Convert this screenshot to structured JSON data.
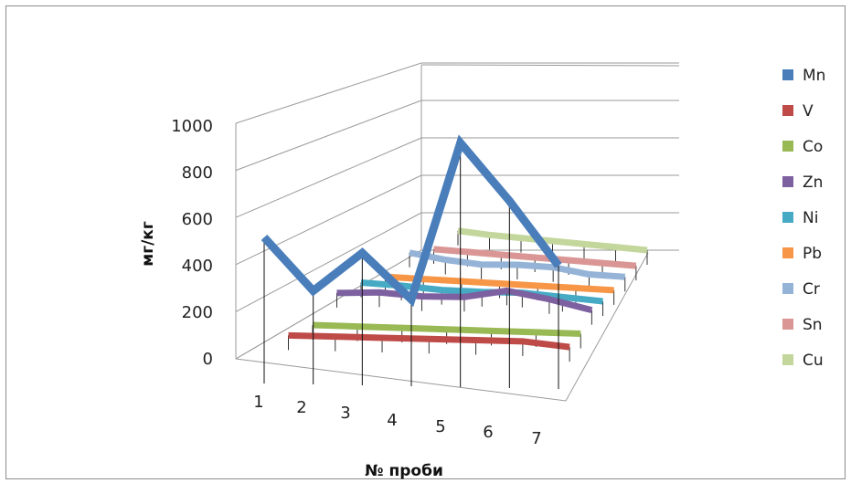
{
  "chart_data": {
    "type": "line",
    "subtype": "3d-line",
    "xlabel": "№ проби",
    "ylabel": "мг/кг",
    "categories": [
      "1",
      "2",
      "3",
      "4",
      "5",
      "6",
      "7"
    ],
    "y_ticks": [
      "0",
      "200",
      "400",
      "600",
      "800",
      "1000"
    ],
    "ylim": [
      0,
      1000
    ],
    "grid": true,
    "legend_position": "right",
    "series": [
      {
        "name": "Mn",
        "color": "#4a7ebb",
        "values": [
          520,
          290,
          460,
          260,
          950,
          700,
          420
        ]
      },
      {
        "name": "V",
        "color": "#be4b48",
        "values": [
          25,
          25,
          25,
          25,
          25,
          25,
          5
        ]
      },
      {
        "name": "Co",
        "color": "#98b954",
        "values": [
          5,
          5,
          5,
          5,
          5,
          5,
          5
        ]
      },
      {
        "name": "Zn",
        "color": "#7d60a0",
        "values": [
          80,
          90,
          80,
          85,
          120,
          90,
          50
        ]
      },
      {
        "name": "Ni",
        "color": "#46aac5",
        "values": [
          60,
          55,
          45,
          45,
          50,
          40,
          30
        ]
      },
      {
        "name": "Pb",
        "color": "#f79646",
        "values": [
          20,
          20,
          20,
          20,
          20,
          20,
          20
        ]
      },
      {
        "name": "Cr",
        "color": "#95b3d7",
        "values": [
          60,
          40,
          30,
          40,
          40,
          20,
          20
        ]
      },
      {
        "name": "Sn",
        "color": "#d99694",
        "values": [
          10,
          10,
          10,
          10,
          10,
          10,
          10
        ]
      },
      {
        "name": "Cu",
        "color": "#c3d69b",
        "values": [
          25,
          20,
          20,
          20,
          20,
          20,
          20
        ]
      }
    ]
  },
  "legend": [
    {
      "label": "Mn",
      "color": "#4a7ebb"
    },
    {
      "label": "V",
      "color": "#be4b48"
    },
    {
      "label": "Co",
      "color": "#98b954"
    },
    {
      "label": "Zn",
      "color": "#7d60a0"
    },
    {
      "label": "Ni",
      "color": "#46aac5"
    },
    {
      "label": "Pb",
      "color": "#f79646"
    },
    {
      "label": "Cr",
      "color": "#95b3d7"
    },
    {
      "label": "Sn",
      "color": "#d99694"
    },
    {
      "label": "Cu",
      "color": "#c3d69b"
    }
  ]
}
